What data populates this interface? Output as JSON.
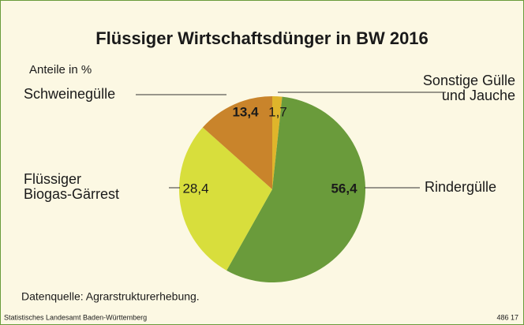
{
  "chart_data": {
    "type": "pie",
    "title": "Flüssiger Wirtschaftsdünger in BW 2016",
    "subtitle": "Anteile in %",
    "categories": [
      "Sonstige Gülle\nund Jauche",
      "Rindergülle",
      "Flüssiger\nBiogas-Gärrest",
      "Schweinegülle"
    ],
    "values": [
      1.7,
      56.4,
      28.4,
      13.4
    ],
    "value_labels": [
      "1,7",
      "56,4",
      "28,4",
      "13,4"
    ],
    "colors": [
      "#dfb52b",
      "#6a9b3b",
      "#d8de3c",
      "#c9842b"
    ],
    "source": "Datenquelle: Agrarstrukturerhebung.",
    "footer_left": "Statistisches Landesamt Baden-Württemberg",
    "footer_right": "486 17"
  }
}
